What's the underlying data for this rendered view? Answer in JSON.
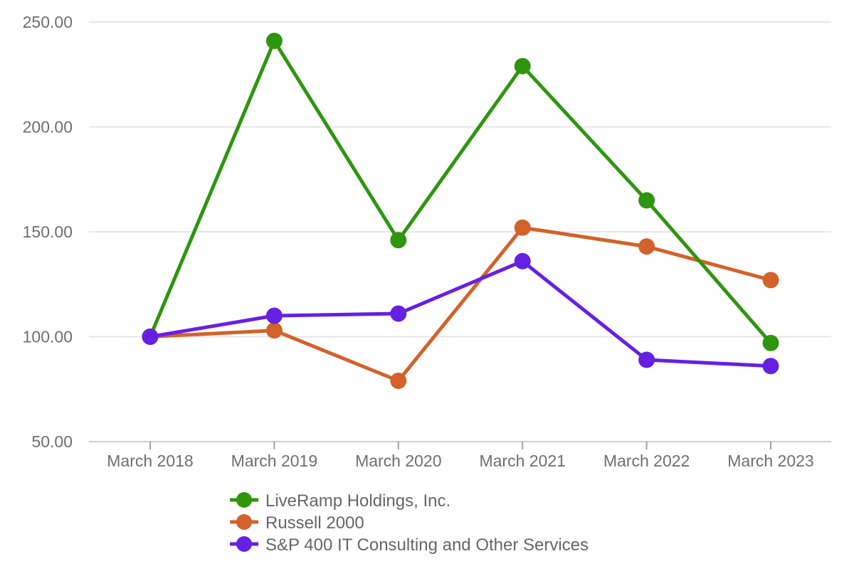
{
  "chart_data": {
    "type": "line",
    "x": [
      "March 2018",
      "March 2019",
      "March 2020",
      "March 2021",
      "March 2022",
      "March 2023"
    ],
    "series": [
      {
        "name": "LiveRamp Holdings, Inc.",
        "color": "#2e950f",
        "values": [
          100,
          241,
          146,
          229,
          165,
          97
        ]
      },
      {
        "name": "Russell 2000",
        "color": "#d2622a",
        "values": [
          100,
          103,
          79,
          152,
          143,
          127
        ]
      },
      {
        "name": "S&P 400 IT Consulting and Other Services",
        "color": "#6620e2",
        "values": [
          100,
          110,
          111,
          136,
          89,
          86
        ]
      }
    ],
    "y_ticks": [
      50,
      100,
      150,
      200,
      250
    ],
    "y_tick_labels": [
      "50.00",
      "100.00",
      "150.00",
      "200.00",
      "250.00"
    ],
    "ylim": [
      50,
      250
    ],
    "grid": true,
    "legend_position": "bottom-left",
    "title": "",
    "xlabel": "",
    "ylabel": ""
  },
  "colors": {
    "background": "#ffffff",
    "gridline": "#e6e6e6",
    "axis_line": "#cfcfcf",
    "tick_mark": "#a0a0a0",
    "axis_text": "#6e6e6e",
    "legend_text": "#666666"
  }
}
